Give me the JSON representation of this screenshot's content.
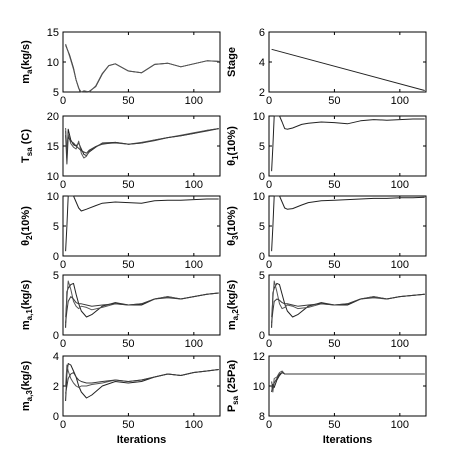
{
  "chart_data": [
    {
      "type": "line",
      "panel": "ma",
      "ylabel": "m_a(kg/s)",
      "xlabel": "",
      "xlim": [
        0,
        120
      ],
      "ylim": [
        5,
        15
      ],
      "xticks": [
        0,
        50,
        100
      ],
      "yticks": [
        5,
        10,
        15
      ],
      "series": [
        {
          "x": [
            2,
            5,
            8,
            10,
            12,
            13,
            14,
            16,
            20,
            25,
            30,
            35,
            40,
            50,
            60,
            70,
            80,
            90,
            100,
            110,
            119
          ],
          "y": [
            12.8,
            11.2,
            9.0,
            7.0,
            5.7,
            5.1,
            5.0,
            4.9,
            5.1,
            5.9,
            8.0,
            9.4,
            9.7,
            8.5,
            8.2,
            9.6,
            9.8,
            9.2,
            9.7,
            10.2,
            10.1
          ]
        },
        {
          "x": [
            2,
            5,
            8,
            10,
            12,
            14,
            16,
            20,
            25,
            30,
            35,
            40,
            50,
            60,
            70,
            80,
            90,
            100,
            110,
            119
          ],
          "y": [
            13.0,
            11.0,
            8.8,
            7.0,
            5.6,
            5.0,
            5.2,
            5.0,
            6.0,
            8.1,
            9.4,
            9.7,
            8.5,
            8.2,
            9.6,
            9.8,
            9.2,
            9.7,
            10.2,
            10.1
          ]
        }
      ]
    },
    {
      "type": "line",
      "panel": "stage",
      "ylabel": "Stage",
      "xlabel": "",
      "xlim": [
        0,
        120
      ],
      "ylim": [
        2,
        6
      ],
      "xticks": [
        0,
        50,
        100
      ],
      "yticks": [
        2,
        4,
        6
      ],
      "series": [
        {
          "x": [
            2,
            119
          ],
          "y": [
            4.85,
            2.1
          ]
        }
      ]
    },
    {
      "type": "line",
      "panel": "tsa",
      "ylabel": "T_sa (C)",
      "xlabel": "",
      "xlim": [
        0,
        120
      ],
      "ylim": [
        10,
        20
      ],
      "xticks": [
        0,
        50,
        100
      ],
      "yticks": [
        10,
        15,
        20
      ],
      "series": [
        {
          "x": [
            2,
            3,
            4,
            6,
            8,
            10,
            12,
            14,
            16,
            18,
            20,
            25,
            30,
            40,
            50,
            60,
            70,
            80,
            90,
            100,
            110,
            119
          ],
          "y": [
            17.5,
            13.0,
            17.8,
            16.0,
            15.2,
            15.0,
            15.5,
            14.5,
            13.6,
            13.4,
            14.0,
            14.8,
            15.5,
            15.6,
            15.3,
            15.5,
            16.0,
            16.4,
            16.7,
            17.1,
            17.6,
            17.9
          ]
        },
        {
          "x": [
            2,
            3,
            4,
            6,
            8,
            10,
            12,
            14,
            16,
            18,
            20,
            25,
            30,
            40,
            50,
            60,
            70,
            80,
            90,
            100,
            110,
            119
          ],
          "y": [
            18.0,
            14.0,
            17.0,
            15.4,
            14.8,
            14.5,
            15.8,
            13.8,
            13.0,
            13.3,
            14.2,
            14.9,
            15.4,
            15.5,
            15.3,
            15.6,
            16.0,
            16.4,
            16.8,
            17.2,
            17.6,
            17.9
          ]
        },
        {
          "x": [
            2,
            3,
            4,
            6,
            8,
            10,
            12,
            14,
            16,
            18,
            20,
            25,
            30,
            40,
            50,
            60,
            70,
            80,
            90,
            100,
            110,
            119
          ],
          "y": [
            16.8,
            12.0,
            16.5,
            15.8,
            15.5,
            15.0,
            14.6,
            14.2,
            14.0,
            13.8,
            14.3,
            14.9,
            15.3,
            15.6,
            15.3,
            15.5,
            15.9,
            16.4,
            16.7,
            17.1,
            17.5,
            17.9
          ]
        }
      ]
    },
    {
      "type": "line",
      "panel": "theta1",
      "ylabel": "θ_1(10%)",
      "xlabel": "",
      "xlim": [
        0,
        120
      ],
      "ylim": [
        0,
        10
      ],
      "xticks": [
        0,
        50,
        100
      ],
      "yticks": [
        0,
        5,
        10
      ],
      "series": [
        {
          "x": [
            2,
            3,
            4,
            6,
            8,
            10,
            12,
            14,
            18,
            25,
            30,
            40,
            50,
            60,
            70,
            80,
            90,
            100,
            110,
            119
          ],
          "y": [
            0.8,
            5.0,
            10.0,
            10.0,
            10.0,
            9.0,
            7.9,
            7.8,
            8.0,
            8.6,
            8.8,
            9.0,
            8.9,
            8.7,
            9.2,
            9.4,
            9.3,
            9.4,
            9.5,
            9.5
          ]
        }
      ]
    },
    {
      "type": "line",
      "panel": "theta2",
      "ylabel": "θ_2(10%)",
      "xlabel": "",
      "xlim": [
        0,
        120
      ],
      "ylim": [
        0,
        10
      ],
      "xticks": [
        0,
        50,
        100
      ],
      "yticks": [
        0,
        5,
        10
      ],
      "series": [
        {
          "x": [
            2,
            3,
            4,
            6,
            8,
            10,
            12,
            14,
            18,
            25,
            30,
            40,
            50,
            60,
            70,
            80,
            90,
            100,
            110,
            119
          ],
          "y": [
            0.8,
            5.0,
            10.0,
            10.0,
            10.0,
            9.0,
            8.0,
            7.5,
            7.8,
            8.4,
            8.8,
            9.0,
            8.9,
            8.8,
            9.2,
            9.3,
            9.3,
            9.4,
            9.5,
            9.5
          ]
        }
      ]
    },
    {
      "type": "line",
      "panel": "theta3",
      "ylabel": "θ_3(10%)",
      "xlabel": "",
      "xlim": [
        0,
        120
      ],
      "ylim": [
        0,
        10
      ],
      "xticks": [
        0,
        50,
        100
      ],
      "yticks": [
        0,
        5,
        10
      ],
      "series": [
        {
          "x": [
            2,
            3,
            4,
            6,
            8,
            10,
            12,
            14,
            18,
            25,
            30,
            40,
            50,
            60,
            70,
            80,
            90,
            100,
            110,
            119
          ],
          "y": [
            0.8,
            5.0,
            10.0,
            10.0,
            10.0,
            9.0,
            8.0,
            7.8,
            7.9,
            8.5,
            8.9,
            9.2,
            9.3,
            9.4,
            9.5,
            9.6,
            9.6,
            9.7,
            9.7,
            9.8
          ]
        }
      ]
    },
    {
      "type": "line",
      "panel": "ma1",
      "ylabel": "m_a,1(kg/s)",
      "xlabel": "",
      "xlim": [
        0,
        120
      ],
      "ylim": [
        0,
        5
      ],
      "xticks": [
        0,
        50,
        100
      ],
      "yticks": [
        0,
        5
      ],
      "series": [
        {
          "x": [
            2,
            3,
            4,
            6,
            8,
            10,
            12,
            14,
            18,
            22,
            30,
            40,
            50,
            60,
            70,
            80,
            90,
            100,
            110,
            119
          ],
          "y": [
            0.6,
            3.6,
            3.9,
            4.2,
            4.3,
            3.4,
            2.6,
            2.0,
            1.5,
            1.7,
            2.4,
            2.7,
            2.5,
            2.5,
            3.0,
            3.2,
            3.0,
            3.2,
            3.4,
            3.5
          ]
        },
        {
          "x": [
            2,
            3,
            4,
            6,
            8,
            10,
            12,
            14,
            18,
            22,
            30,
            40,
            50,
            60,
            70,
            80,
            90,
            100,
            110,
            119
          ],
          "y": [
            1.5,
            3.0,
            4.5,
            3.8,
            2.8,
            2.4,
            2.2,
            2.4,
            2.3,
            2.1,
            2.3,
            2.6,
            2.5,
            2.6,
            3.0,
            3.2,
            3.0,
            3.2,
            3.4,
            3.5
          ]
        },
        {
          "x": [
            2,
            3,
            4,
            6,
            8,
            10,
            12,
            14,
            18,
            22,
            30,
            40,
            50,
            60,
            70,
            80,
            90,
            100,
            110,
            119
          ],
          "y": [
            1.0,
            2.0,
            2.8,
            3.2,
            3.0,
            2.7,
            2.6,
            2.6,
            2.5,
            2.4,
            2.5,
            2.6,
            2.5,
            2.6,
            3.0,
            3.1,
            3.0,
            3.2,
            3.4,
            3.5
          ]
        }
      ]
    },
    {
      "type": "line",
      "panel": "ma2",
      "ylabel": "m_a,2(kg/s)",
      "xlabel": "",
      "xlim": [
        0,
        120
      ],
      "ylim": [
        0,
        5
      ],
      "xticks": [
        0,
        50,
        100
      ],
      "yticks": [
        0,
        5
      ],
      "series": [
        {
          "x": [
            2,
            3,
            4,
            6,
            8,
            10,
            12,
            14,
            18,
            22,
            30,
            40,
            50,
            60,
            70,
            80,
            90,
            100,
            110,
            119
          ],
          "y": [
            0.6,
            3.5,
            3.9,
            4.3,
            4.2,
            3.4,
            2.6,
            2.0,
            1.5,
            1.7,
            2.4,
            2.7,
            2.5,
            2.5,
            3.0,
            3.2,
            3.0,
            3.2,
            3.3,
            3.4
          ]
        },
        {
          "x": [
            2,
            3,
            4,
            6,
            8,
            10,
            12,
            14,
            18,
            22,
            30,
            40,
            50,
            60,
            70,
            80,
            90,
            100,
            110,
            119
          ],
          "y": [
            1.5,
            3.0,
            4.5,
            3.6,
            2.6,
            2.2,
            2.3,
            2.5,
            2.4,
            2.2,
            2.3,
            2.6,
            2.5,
            2.6,
            3.0,
            3.2,
            3.0,
            3.2,
            3.3,
            3.4
          ]
        },
        {
          "x": [
            2,
            3,
            4,
            6,
            8,
            10,
            12,
            14,
            18,
            22,
            30,
            40,
            50,
            60,
            70,
            80,
            90,
            100,
            110,
            119
          ],
          "y": [
            1.0,
            2.0,
            2.8,
            3.0,
            2.9,
            2.7,
            2.6,
            2.6,
            2.5,
            2.4,
            2.5,
            2.6,
            2.5,
            2.6,
            3.0,
            3.1,
            3.0,
            3.2,
            3.3,
            3.4
          ]
        }
      ]
    },
    {
      "type": "line",
      "panel": "ma3",
      "ylabel": "m_a,3(kg/s)",
      "xlabel": "Iterations",
      "xlim": [
        0,
        120
      ],
      "ylim": [
        0,
        4
      ],
      "xticks": [
        0,
        50,
        100
      ],
      "yticks": [
        0,
        2,
        4
      ],
      "series": [
        {
          "x": [
            2,
            3,
            4,
            6,
            8,
            10,
            12,
            14,
            18,
            22,
            30,
            40,
            50,
            60,
            70,
            80,
            90,
            100,
            110,
            119
          ],
          "y": [
            1.0,
            2.8,
            3.5,
            3.4,
            3.0,
            2.6,
            2.0,
            1.6,
            1.2,
            1.4,
            2.0,
            2.3,
            2.2,
            2.3,
            2.6,
            2.8,
            2.7,
            2.9,
            3.0,
            3.1
          ]
        },
        {
          "x": [
            2,
            3,
            4,
            6,
            8,
            10,
            12,
            14,
            18,
            22,
            30,
            40,
            50,
            60,
            70,
            80,
            90,
            100,
            110,
            119
          ],
          "y": [
            2.0,
            3.4,
            3.0,
            2.5,
            2.2,
            2.0,
            1.9,
            2.0,
            2.0,
            2.1,
            2.2,
            2.4,
            2.3,
            2.4,
            2.6,
            2.8,
            2.7,
            2.9,
            3.0,
            3.1
          ]
        },
        {
          "x": [
            2,
            3,
            4,
            6,
            8,
            10,
            12,
            14,
            18,
            22,
            30,
            40,
            50,
            60,
            70,
            80,
            90,
            100,
            110,
            119
          ],
          "y": [
            1.5,
            2.0,
            2.5,
            2.8,
            2.9,
            2.6,
            2.4,
            2.3,
            2.2,
            2.2,
            2.3,
            2.4,
            2.3,
            2.4,
            2.6,
            2.8,
            2.7,
            2.9,
            3.0,
            3.1
          ]
        }
      ]
    },
    {
      "type": "line",
      "panel": "psa",
      "ylabel": "P_sa (25Pa)",
      "xlabel": "Iterations",
      "xlim": [
        0,
        120
      ],
      "ylim": [
        8,
        12
      ],
      "xticks": [
        0,
        50,
        100
      ],
      "yticks": [
        8,
        10,
        12
      ],
      "series": [
        {
          "x": [
            2,
            3,
            4,
            6,
            8,
            10,
            12,
            15,
            20,
            30,
            40,
            60,
            80,
            100,
            119
          ],
          "y": [
            9.6,
            10.1,
            9.9,
            10.4,
            10.7,
            10.9,
            10.8,
            10.8,
            10.8,
            10.8,
            10.8,
            10.8,
            10.8,
            10.8,
            10.8
          ]
        },
        {
          "x": [
            2,
            3,
            4,
            6,
            8,
            10,
            12,
            15,
            20,
            30,
            40,
            60,
            80,
            100,
            119
          ],
          "y": [
            10.0,
            9.6,
            10.5,
            10.6,
            10.9,
            11.0,
            10.8,
            10.8,
            10.8,
            10.8,
            10.8,
            10.8,
            10.8,
            10.8,
            10.8
          ]
        },
        {
          "x": [
            2,
            3,
            4,
            6,
            8,
            10,
            12,
            15,
            20,
            30,
            40,
            60,
            80,
            100,
            119
          ],
          "y": [
            10.3,
            9.8,
            10.2,
            10.5,
            10.8,
            10.9,
            10.8,
            10.8,
            10.8,
            10.8,
            10.8,
            10.8,
            10.8,
            10.8,
            10.8
          ]
        }
      ]
    }
  ]
}
